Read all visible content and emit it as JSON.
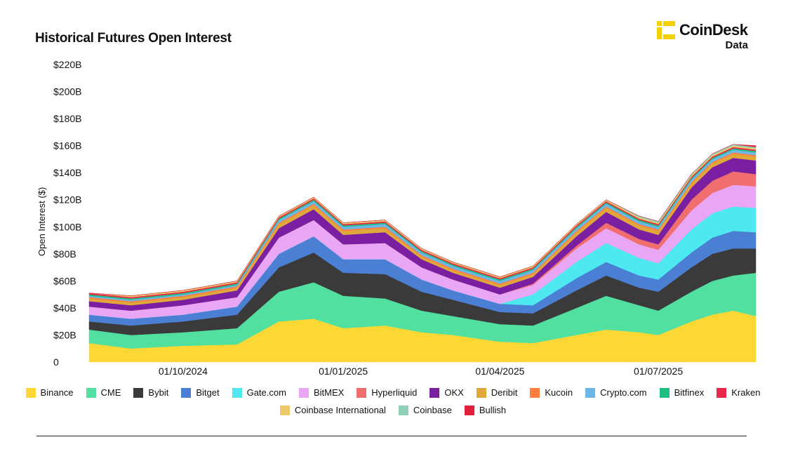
{
  "header": {
    "title": "Historical Futures Open Interest"
  },
  "brand": {
    "name": "CoinDesk",
    "sub": "Data",
    "color": "#f5d000"
  },
  "chart_data": {
    "type": "area",
    "stacked": true,
    "title": "Historical Futures Open Interest",
    "xlabel": "",
    "ylabel": "Open Interest ($)",
    "ylim": [
      0,
      220
    ],
    "y_unit": "B",
    "yticks": [
      "0",
      "$20B",
      "$40B",
      "$60B",
      "$80B",
      "$100B",
      "$120B",
      "$140B",
      "$160B",
      "$180B",
      "$200B",
      "$220B"
    ],
    "xlim": [
      "2024-08-08",
      "2025-08-26"
    ],
    "xticks": [
      "01/10/2024",
      "01/01/2025",
      "01/04/2025",
      "01/07/2025"
    ],
    "grid": false,
    "legend_position": "bottom",
    "x": [
      "2024-08-08",
      "2024-09-01",
      "2024-10-01",
      "2024-11-01",
      "2024-11-25",
      "2024-12-15",
      "2025-01-01",
      "2025-01-25",
      "2025-02-15",
      "2025-03-05",
      "2025-04-01",
      "2025-04-20",
      "2025-05-15",
      "2025-06-01",
      "2025-06-20",
      "2025-07-01",
      "2025-07-20",
      "2025-08-01",
      "2025-08-13",
      "2025-08-26"
    ],
    "series": [
      {
        "name": "Binance",
        "color": "#fdd835",
        "values": [
          14,
          10,
          12,
          13,
          30,
          32,
          25,
          27,
          22,
          20,
          15,
          14,
          20,
          24,
          22,
          20,
          30,
          35,
          38,
          34
        ]
      },
      {
        "name": "CME",
        "color": "#52e0a0",
        "values": [
          10,
          10,
          10,
          12,
          22,
          27,
          24,
          20,
          16,
          14,
          13,
          13,
          20,
          25,
          20,
          18,
          22,
          25,
          26,
          32
        ]
      },
      {
        "name": "Bybit",
        "color": "#3a3a3a",
        "values": [
          6,
          7,
          8,
          10,
          18,
          22,
          17,
          18,
          14,
          12,
          9,
          9,
          13,
          15,
          13,
          14,
          18,
          20,
          20,
          18
        ]
      },
      {
        "name": "Bitget",
        "color": "#4a7fd4",
        "values": [
          5,
          5,
          5,
          6,
          10,
          12,
          10,
          11,
          9,
          7,
          6,
          6,
          9,
          10,
          9,
          9,
          11,
          12,
          13,
          12
        ]
      },
      {
        "name": "Gate.com",
        "color": "#4ee8f0",
        "values": [
          0,
          0,
          0,
          0,
          0,
          0,
          0,
          0,
          0,
          0,
          0,
          8,
          12,
          14,
          13,
          12,
          17,
          18,
          18,
          18
        ]
      },
      {
        "name": "BitMEX",
        "color": "#e8a6f4",
        "values": [
          6,
          6,
          7,
          7,
          12,
          12,
          11,
          12,
          9,
          8,
          7,
          7,
          10,
          11,
          10,
          10,
          14,
          15,
          16,
          16
        ]
      },
      {
        "name": "Hyperliquid",
        "color": "#f06e6e",
        "values": [
          0,
          0,
          0,
          0,
          0,
          0,
          0,
          0,
          0,
          0,
          0,
          1,
          2,
          4,
          4,
          4,
          8,
          9,
          10,
          9
        ]
      },
      {
        "name": "OKX",
        "color": "#7a1fa2",
        "values": [
          4,
          4,
          4,
          5,
          7,
          8,
          7,
          8,
          6,
          5,
          5,
          5,
          7,
          8,
          7,
          7,
          9,
          10,
          10,
          10
        ]
      },
      {
        "name": "Deribit",
        "color": "#e0a83a",
        "values": [
          2,
          2,
          2,
          2,
          3,
          3,
          3,
          3,
          2,
          2,
          2,
          2,
          3,
          3,
          3,
          3,
          3,
          3,
          3,
          3
        ]
      },
      {
        "name": "Kucoin",
        "color": "#ff7f3f",
        "values": [
          1,
          1,
          1,
          1,
          1,
          1,
          1,
          1,
          1,
          1,
          1,
          1,
          1,
          1,
          1,
          1,
          1,
          1,
          1,
          1
        ]
      },
      {
        "name": "Crypto.com",
        "color": "#6bb7e8",
        "values": [
          1,
          1,
          1,
          1,
          2,
          2,
          2,
          2,
          2,
          2,
          2,
          2,
          2,
          2,
          2,
          2,
          2,
          2,
          2,
          2
        ]
      },
      {
        "name": "Bitfinex",
        "color": "#1fbf84",
        "values": [
          1,
          1,
          1,
          1,
          1,
          1,
          1,
          1,
          1,
          1,
          1,
          1,
          1,
          1,
          1,
          1,
          1,
          1,
          1,
          1
        ]
      },
      {
        "name": "Kraken",
        "color": "#e8294a",
        "values": [
          1,
          1,
          1,
          1,
          1,
          1,
          1,
          1,
          1,
          1,
          1,
          1,
          1,
          1,
          1,
          1,
          1,
          1,
          1,
          1
        ]
      },
      {
        "name": "Coinbase International",
        "color": "#edc96a",
        "values": [
          0,
          1,
          1,
          1,
          1,
          1,
          1,
          1,
          1,
          1,
          1,
          1,
          1,
          1,
          1,
          1,
          1,
          1,
          1,
          1
        ]
      },
      {
        "name": "Coinbase",
        "color": "#8fd0b6",
        "values": [
          0,
          0,
          0,
          0,
          0,
          0,
          0,
          0,
          0,
          0,
          0,
          0,
          0,
          0,
          1,
          1,
          1,
          1,
          1,
          1
        ]
      },
      {
        "name": "Bullish",
        "color": "#e0203c",
        "values": [
          0,
          0,
          0,
          0,
          0,
          0,
          0,
          0,
          0,
          0,
          0,
          0,
          0,
          0,
          0,
          0,
          0,
          0,
          0,
          1
        ]
      }
    ]
  }
}
